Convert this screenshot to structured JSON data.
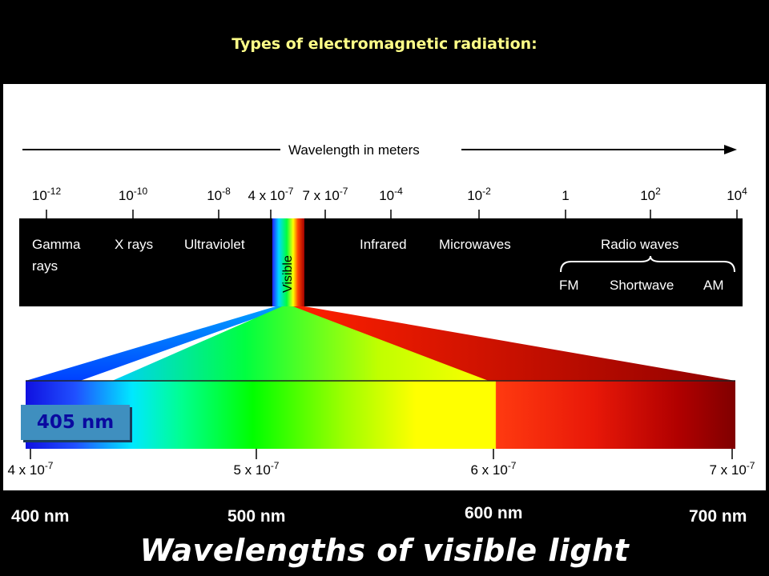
{
  "heading": "Types of electromagnetic radiation:",
  "axis_title": "Wavelength in meters",
  "top_ticks": [
    {
      "base": "10",
      "exp": "-12"
    },
    {
      "base": "10",
      "exp": "-10"
    },
    {
      "base": "10",
      "exp": "-8"
    },
    {
      "base": "4 x 10",
      "exp": "-7"
    },
    {
      "base": "7 x 10",
      "exp": "-7"
    },
    {
      "base": "10",
      "exp": "-4"
    },
    {
      "base": "10",
      "exp": "-2"
    },
    {
      "base": "1",
      "exp": ""
    },
    {
      "base": "10",
      "exp": "2"
    },
    {
      "base": "10",
      "exp": "4"
    }
  ],
  "regions": {
    "gamma_line1": "Gamma",
    "gamma_line2": "rays",
    "xrays": "X rays",
    "ultraviolet": "Ultraviolet",
    "visible": "Visible",
    "infrared": "Infrared",
    "microwaves": "Microwaves",
    "radio": "Radio waves",
    "fm": "FM",
    "shortwave": "Shortwave",
    "am": "AM"
  },
  "bottom_ticks": [
    {
      "base": "4 x 10",
      "exp": "-7"
    },
    {
      "base": "5 x 10",
      "exp": "-7"
    },
    {
      "base": "6 x 10",
      "exp": "-7"
    },
    {
      "base": "7 x 10",
      "exp": "-7"
    }
  ],
  "highlight": "405 nm",
  "nm_labels": [
    "400 nm",
    "500 nm",
    "600 nm",
    "700 nm"
  ],
  "caption": "Wavelengths of visible light",
  "colors": {
    "heading": "#ffff88",
    "highlight_box": "#3f8fbf",
    "highlight_text": "#0a0aa0"
  }
}
